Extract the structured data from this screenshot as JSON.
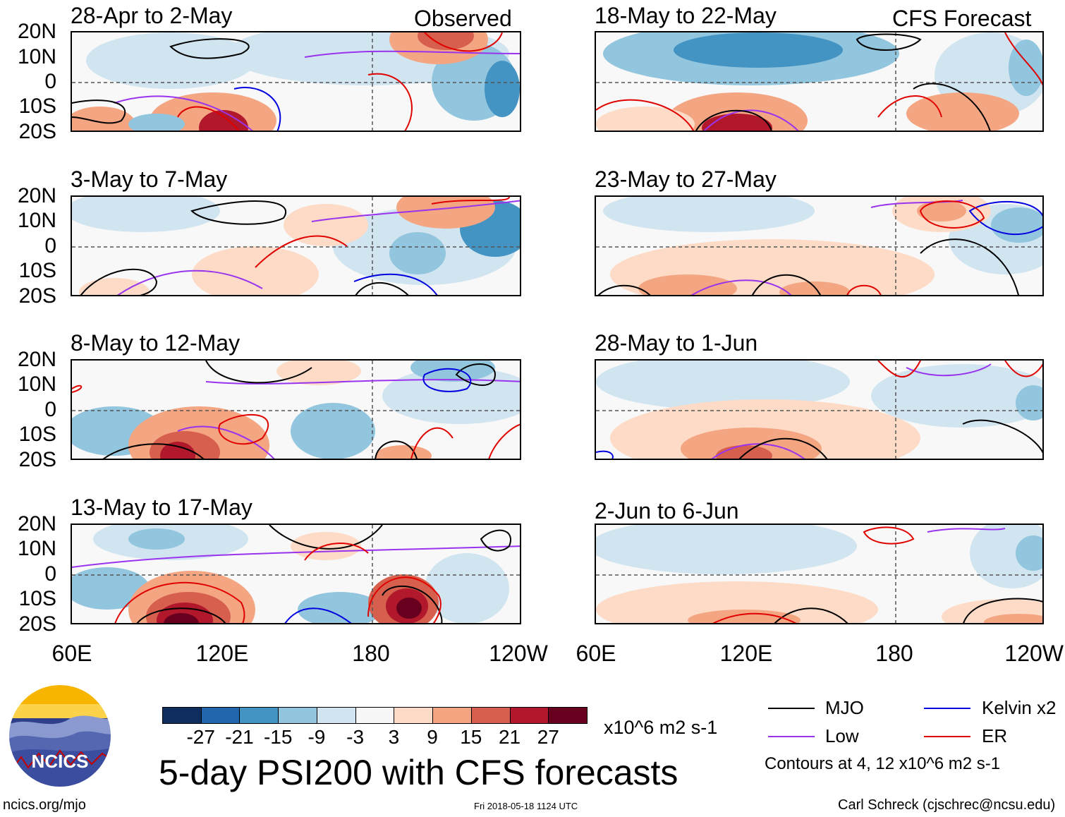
{
  "headers": {
    "left": "Observed",
    "right": "CFS Forecast"
  },
  "panels": [
    {
      "title": "28-Apr to 2-May",
      "column": "observed"
    },
    {
      "title": "3-May to 7-May",
      "column": "observed"
    },
    {
      "title": "8-May to 12-May",
      "column": "observed"
    },
    {
      "title": "13-May to 17-May",
      "column": "observed"
    },
    {
      "title": "18-May to 22-May",
      "column": "forecast"
    },
    {
      "title": "23-May to 27-May",
      "column": "forecast"
    },
    {
      "title": "28-May to 1-Jun",
      "column": "forecast"
    },
    {
      "title": "2-Jun to 6-Jun",
      "column": "forecast"
    }
  ],
  "lat_labels": [
    "20N",
    "10N",
    "0",
    "10S",
    "20S"
  ],
  "lon_labels": [
    "60E",
    "120E",
    "180",
    "120W"
  ],
  "chart_data": {
    "type": "heatmap",
    "title": "5-day PSI200 with CFS forecasts",
    "variable": "200-hPa streamfunction anomaly (PSI200)",
    "units": "x10^6 m2 s-1",
    "lat_range": [
      -20,
      20
    ],
    "lon_range": [
      60,
      240
    ],
    "colorbar": {
      "ticks": [
        "-27",
        "-21",
        "-15",
        "-9",
        "-3",
        "3",
        "9",
        "15",
        "21",
        "27"
      ],
      "colors": [
        "#0f2d5e",
        "#2166ac",
        "#4393c3",
        "#92c5de",
        "#d1e5f0",
        "#f7f7f7",
        "#fddbc7",
        "#f4a582",
        "#d6604d",
        "#b2182b",
        "#67001f"
      ]
    },
    "contour_legend": [
      {
        "label": "MJO",
        "color": "#000000"
      },
      {
        "label": "Kelvin x2",
        "color": "#0000e0"
      },
      {
        "label": "Low",
        "color": "#9933ee"
      },
      {
        "label": "ER",
        "color": "#e00000"
      }
    ],
    "contour_note": "Contours at 4, 12 x10^6 m2 s-1"
  },
  "footer": {
    "site": "ncics.org/mjo",
    "timestamp": "Fri 2018-05-18 1124 UTC",
    "author": "Carl Schreck (cjschrec@ncsu.edu)",
    "logo_text": "NCICS"
  },
  "colors": {
    "panel_bg": "#f8f8f8"
  }
}
